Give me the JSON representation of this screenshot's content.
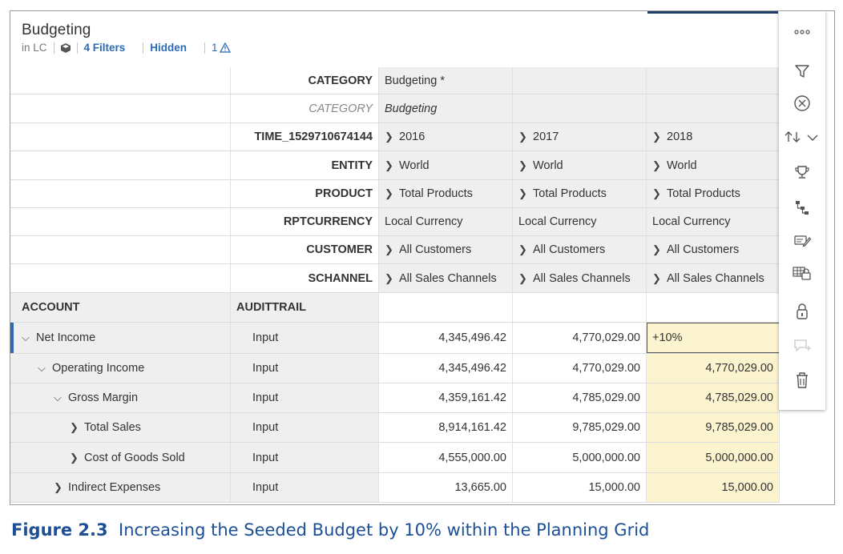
{
  "header": {
    "title": "Budgeting",
    "model_label": "in LC",
    "filters_label": "4 Filters",
    "hidden_label": "Hidden",
    "warning_count": "1"
  },
  "column_headers": [
    {
      "dimension": "CATEGORY",
      "values": [
        "Budgeting *",
        "",
        ""
      ]
    },
    {
      "dimension": "CATEGORY",
      "values": [
        "Budgeting",
        "",
        ""
      ]
    },
    {
      "dimension": "TIME_1529710674144",
      "values": [
        "2016",
        "2017",
        "2018"
      ]
    },
    {
      "dimension": "ENTITY",
      "values": [
        "World",
        "World",
        "World"
      ]
    },
    {
      "dimension": "PRODUCT",
      "values": [
        "Total Products",
        "Total Products",
        "Total Products"
      ]
    },
    {
      "dimension": "RPTCURRENCY",
      "values": [
        "Local Currency",
        "Local Currency",
        "Local Currency"
      ]
    },
    {
      "dimension": "CUSTOMER",
      "values": [
        "All Customers",
        "All Customers",
        "All Customers"
      ]
    },
    {
      "dimension": "SCHANNEL",
      "values": [
        "All Sales Channels",
        "All Sales Channels",
        "All Sales Channels"
      ]
    }
  ],
  "row_axis": {
    "account_label": "ACCOUNT",
    "audit_label": "AUDITTRAIL"
  },
  "rows": [
    {
      "account": "Net Income",
      "audit": "Input",
      "v2016": "4,345,496.42",
      "v2017": "4,770,029.00",
      "v2018": "+10%"
    },
    {
      "account": "Operating Income",
      "audit": "Input",
      "v2016": "4,345,496.42",
      "v2017": "4,770,029.00",
      "v2018": "4,770,029.00"
    },
    {
      "account": "Gross Margin",
      "audit": "Input",
      "v2016": "4,359,161.42",
      "v2017": "4,785,029.00",
      "v2018": "4,785,029.00"
    },
    {
      "account": "Total Sales",
      "audit": "Input",
      "v2016": "8,914,161.42",
      "v2017": "9,785,029.00",
      "v2018": "9,785,029.00"
    },
    {
      "account": "Cost of Goods Sold",
      "audit": "Input",
      "v2016": "4,555,000.00",
      "v2017": "5,000,000.00",
      "v2018": "5,000,000.00"
    },
    {
      "account": "Indirect Expenses",
      "audit": "Input",
      "v2016": "13,665.00",
      "v2017": "15,000.00",
      "v2018": "15,000.00"
    }
  ],
  "caption": {
    "label": "Figure 2.3",
    "text": "Increasing the Seeded Budget by 10% within the Planning Grid"
  },
  "colors": {
    "accent": "#2a6bb5",
    "editable_cell": "#fcf3cf",
    "caption": "#1d4f96"
  },
  "toolbar_icons": [
    "more-icon",
    "filter-icon",
    "close-circle-icon",
    "sort-icon",
    "trophy-icon",
    "hierarchy-icon",
    "comment-edit-icon",
    "lock-cells-icon",
    "lock-icon",
    "add-comment-icon",
    "delete-icon"
  ]
}
